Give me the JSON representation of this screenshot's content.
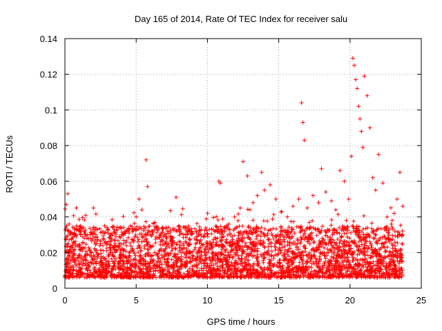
{
  "chart_data": {
    "type": "scatter",
    "title": "Day 165 of 2014, Rate Of TEC Index for receiver salu",
    "xlabel": "GPS time / hours",
    "ylabel": "ROTI / TECUs",
    "xlim": [
      0,
      25
    ],
    "ylim": [
      0,
      0.14
    ],
    "x_ticks": [
      0,
      5,
      10,
      15,
      20,
      25
    ],
    "y_ticks": [
      0,
      0.02,
      0.04,
      0.06,
      0.08,
      0.1,
      0.12,
      0.14
    ],
    "x_tick_labels": [
      "0",
      "5",
      "10",
      "15",
      "20",
      "25"
    ],
    "y_tick_labels": [
      "0",
      "0.02",
      "0.04",
      "0.06",
      "0.08",
      "0.1",
      "0.12",
      "0.14"
    ],
    "grid": true,
    "marker": "+",
    "marker_color": "#ff0000",
    "series": [
      {
        "name": "ROTI",
        "x": [
          0.1,
          0.2,
          0.3,
          0.5,
          0.8,
          1.2,
          1.6,
          2.0,
          2.5,
          3.0,
          3.5,
          4.0,
          4.5,
          4.8,
          5.0,
          5.2,
          5.4,
          5.7,
          5.8,
          6.0,
          6.3,
          6.6,
          7.0,
          7.5,
          7.8,
          8.0,
          8.3,
          8.7,
          9.0,
          9.5,
          9.9,
          10.3,
          10.7,
          10.8,
          10.9,
          11.2,
          11.5,
          11.9,
          12.3,
          12.5,
          12.8,
          13.2,
          13.5,
          13.8,
          14.0,
          14.4,
          14.8,
          15.2,
          15.6,
          16.0,
          16.4,
          16.6,
          16.7,
          16.8,
          17.0,
          17.4,
          17.8,
          18.0,
          18.3,
          18.7,
          19.0,
          19.3,
          19.6,
          19.9,
          20.1,
          20.2,
          20.3,
          20.4,
          20.5,
          20.6,
          20.7,
          20.8,
          20.9,
          21.0,
          21.2,
          21.4,
          21.6,
          21.8,
          22.0,
          22.3,
          22.6,
          22.9,
          23.1,
          23.3,
          23.5,
          23.7
        ],
        "y": [
          0.047,
          0.053,
          0.036,
          0.028,
          0.045,
          0.022,
          0.03,
          0.045,
          0.025,
          0.033,
          0.024,
          0.03,
          0.031,
          0.026,
          0.04,
          0.05,
          0.044,
          0.072,
          0.057,
          0.03,
          0.02,
          0.017,
          0.016,
          0.021,
          0.051,
          0.035,
          0.025,
          0.02,
          0.018,
          0.023,
          0.019,
          0.025,
          0.028,
          0.06,
          0.059,
          0.032,
          0.036,
          0.04,
          0.045,
          0.071,
          0.063,
          0.048,
          0.052,
          0.065,
          0.055,
          0.058,
          0.05,
          0.043,
          0.04,
          0.046,
          0.05,
          0.104,
          0.093,
          0.083,
          0.045,
          0.052,
          0.048,
          0.067,
          0.054,
          0.049,
          0.044,
          0.066,
          0.06,
          0.05,
          0.074,
          0.129,
          0.125,
          0.117,
          0.112,
          0.102,
          0.095,
          0.088,
          0.079,
          0.119,
          0.108,
          0.09,
          0.062,
          0.055,
          0.075,
          0.059,
          0.04,
          0.036,
          0.042,
          0.05,
          0.065,
          0.046
        ]
      }
    ],
    "dense_band": {
      "description": "continuous base cloud of points from 0 to 23.7 hours",
      "y_low": 0.006,
      "y_high": 0.035
    }
  }
}
